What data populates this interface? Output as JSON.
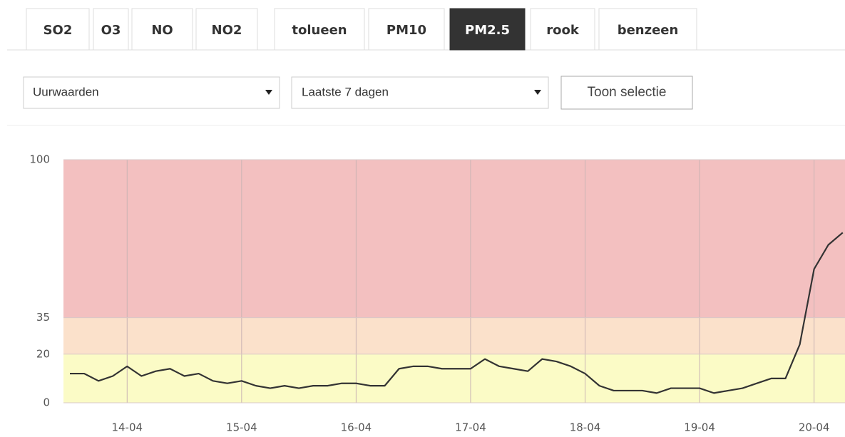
{
  "tabs": [
    "SO2",
    "O3",
    "NO",
    "NO2",
    "tolueen",
    "PM10",
    "PM2.5",
    "rook",
    "benzeen"
  ],
  "active_tab": 6,
  "period_type": "Uurwaarden",
  "period": "Laatste 7 dagen",
  "button": "Toon selectie",
  "chart_data": {
    "type": "line",
    "categories": [
      null,
      null,
      null,
      null,
      "14-04",
      null,
      null,
      null,
      null,
      null,
      null,
      null,
      "15-04",
      null,
      null,
      null,
      null,
      null,
      null,
      null,
      "16-04",
      null,
      null,
      null,
      null,
      null,
      null,
      null,
      "17-04",
      null,
      null,
      null,
      null,
      null,
      null,
      null,
      "18-04",
      null,
      null,
      null,
      null,
      null,
      null,
      null,
      "19-04",
      null,
      null,
      null,
      null,
      null,
      null,
      null,
      "20-04",
      null,
      null
    ],
    "values": [
      12,
      12,
      9,
      11,
      15,
      11,
      13,
      14,
      11,
      12,
      9,
      8,
      9,
      7,
      6,
      7,
      6,
      7,
      7,
      8,
      8,
      7,
      7,
      14,
      15,
      15,
      14,
      14,
      14,
      18,
      15,
      14,
      13,
      18,
      17,
      15,
      12,
      7,
      5,
      5,
      5,
      4,
      6,
      6,
      6,
      4,
      5,
      6,
      8,
      10,
      10,
      24,
      55,
      65,
      70
    ],
    "color": "#333333",
    "ylim": [
      0,
      100
    ],
    "yticks": [
      0,
      20,
      35,
      100
    ],
    "bands": [
      {
        "from": 0,
        "to": 20,
        "color": "#fbfbc6"
      },
      {
        "from": 20,
        "to": 35,
        "color": "#fbe1cb"
      },
      {
        "from": 35,
        "to": 100,
        "color": "#f3c0c0"
      }
    ]
  }
}
